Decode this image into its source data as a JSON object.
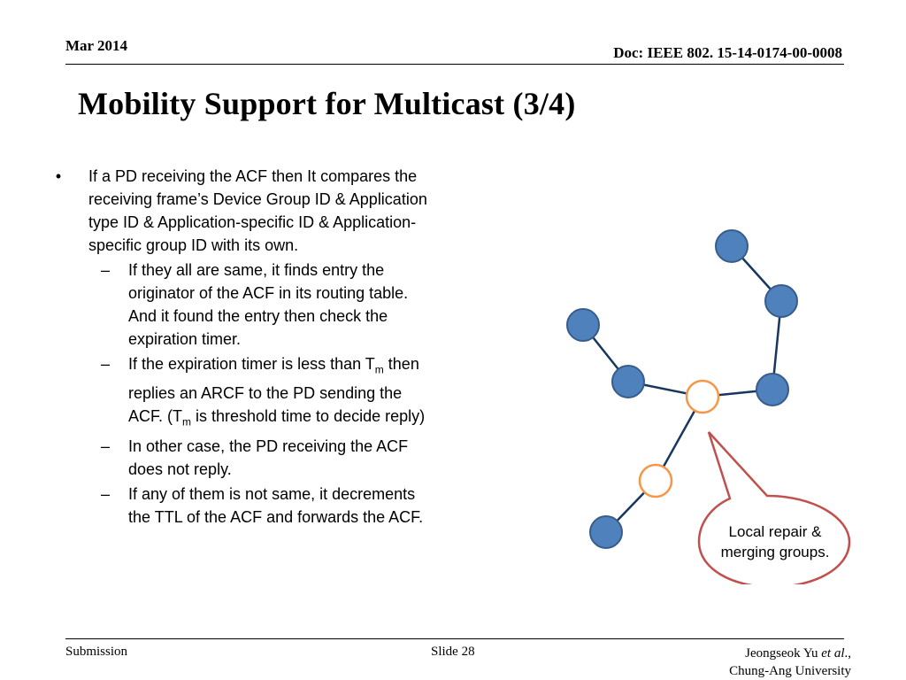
{
  "header": {
    "date": "Mar 2014",
    "doc": "Doc: IEEE 802. 15-14-0174-00-0008"
  },
  "title": "Mobility Support for Multicast (3/4)",
  "bullets": {
    "main": {
      "mark": "•",
      "text": "If a PD receiving the ACF then It compares the receiving frame’s Device Group ID & Application type ID & Application-specific ID & Application-specific group ID with its own."
    },
    "sub_mark": "–",
    "sub1": "If they all are same, it finds entry the originator of the ACF in its routing table. And it found the entry then check the expiration timer.",
    "sub2": {
      "p1": "If the expiration timer is less than T",
      "sub_a": "m",
      "p2": " then replies an ARCF to the PD sending the ACF. (T",
      "sub_b": "m",
      "p3": " is threshold time to decide reply)"
    },
    "sub3": "In other case, the PD receiving the ACF does not reply.",
    "sub4": "If any of them is not same, it decrements the TTL of the ACF and forwards the ACF."
  },
  "diagram": {
    "callout_line1": "Local repair &",
    "callout_line2": "merging groups.",
    "colors": {
      "node_fill": "#4f81bd",
      "node_stroke": "#385d8a",
      "repair_stroke": "#f79646",
      "link": "#17375e",
      "callout_stroke": "#c0504d"
    }
  },
  "footer": {
    "left": "Submission",
    "center": "Slide 28",
    "author": "Jeongseok Yu",
    "etal": "et al",
    "author_suffix": ".,",
    "affiliation": "Chung-Ang University"
  }
}
